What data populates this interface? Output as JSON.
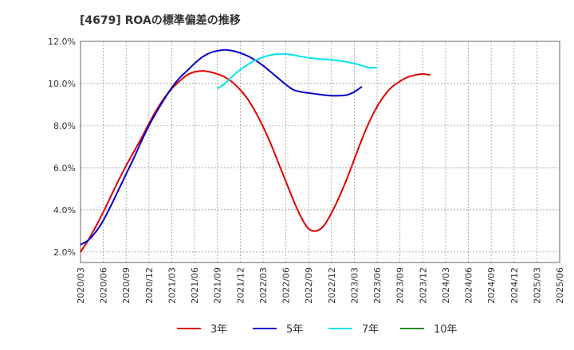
{
  "chart_data": {
    "type": "line",
    "title": "[4679]  ROAの標準偏差の推移",
    "xlabel": "",
    "ylabel": "",
    "ylim": [
      1.5,
      12.0
    ],
    "yticks": [
      2.0,
      4.0,
      6.0,
      8.0,
      10.0,
      12.0
    ],
    "ytick_labels": [
      "2.0%",
      "4.0%",
      "6.0%",
      "8.0%",
      "10.0%",
      "12.0%"
    ],
    "x_tick_labels": [
      "2020/03",
      "2020/06",
      "2020/09",
      "2020/12",
      "2021/03",
      "2021/06",
      "2021/09",
      "2021/12",
      "2022/03",
      "2022/06",
      "2022/09",
      "2022/12",
      "2023/03",
      "2023/06",
      "2023/09",
      "2023/12",
      "2024/03",
      "2024/06",
      "2024/09",
      "2024/12",
      "2025/03",
      "2025/06"
    ],
    "grid": true,
    "legend_position": "bottom",
    "series": [
      {
        "name": "3年",
        "color": "#e00000",
        "values": [
          [
            0,
            2.0
          ],
          [
            1,
            2.55
          ],
          [
            2,
            3.2
          ],
          [
            3,
            3.9
          ],
          [
            4,
            4.65
          ],
          [
            5,
            5.4
          ],
          [
            6,
            6.1
          ],
          [
            7,
            6.75
          ],
          [
            8,
            7.4
          ],
          [
            9,
            8.1
          ],
          [
            10,
            8.75
          ],
          [
            11,
            9.3
          ],
          [
            12,
            9.75
          ],
          [
            13,
            10.1
          ],
          [
            14,
            10.4
          ],
          [
            15,
            10.55
          ],
          [
            16,
            10.6
          ],
          [
            17,
            10.55
          ],
          [
            18,
            10.45
          ],
          [
            19,
            10.3
          ],
          [
            20,
            10.05
          ],
          [
            21,
            9.7
          ],
          [
            22,
            9.25
          ],
          [
            23,
            8.65
          ],
          [
            24,
            7.95
          ],
          [
            25,
            7.15
          ],
          [
            26,
            6.25
          ],
          [
            27,
            5.35
          ],
          [
            28,
            4.45
          ],
          [
            29,
            3.65
          ],
          [
            30,
            3.1
          ],
          [
            31,
            3.0
          ],
          [
            32,
            3.25
          ],
          [
            33,
            3.85
          ],
          [
            34,
            4.6
          ],
          [
            35,
            5.45
          ],
          [
            36,
            6.4
          ],
          [
            37,
            7.35
          ],
          [
            38,
            8.2
          ],
          [
            39,
            8.9
          ],
          [
            40,
            9.45
          ],
          [
            41,
            9.85
          ],
          [
            42,
            10.1
          ],
          [
            43,
            10.3
          ],
          [
            44,
            10.4
          ],
          [
            45,
            10.45
          ],
          [
            46,
            10.4
          ]
        ]
      },
      {
        "name": "5年",
        "color": "#0000cc",
        "values": [
          [
            0,
            2.35
          ],
          [
            1,
            2.55
          ],
          [
            2,
            2.95
          ],
          [
            3,
            3.5
          ],
          [
            4,
            4.2
          ],
          [
            5,
            4.95
          ],
          [
            6,
            5.7
          ],
          [
            7,
            6.45
          ],
          [
            8,
            7.25
          ],
          [
            9,
            8.0
          ],
          [
            10,
            8.65
          ],
          [
            11,
            9.25
          ],
          [
            12,
            9.8
          ],
          [
            13,
            10.25
          ],
          [
            14,
            10.6
          ],
          [
            15,
            10.95
          ],
          [
            16,
            11.25
          ],
          [
            17,
            11.45
          ],
          [
            18,
            11.55
          ],
          [
            19,
            11.6
          ],
          [
            20,
            11.55
          ],
          [
            21,
            11.45
          ],
          [
            22,
            11.3
          ],
          [
            23,
            11.1
          ],
          [
            24,
            10.85
          ],
          [
            25,
            10.55
          ],
          [
            26,
            10.25
          ],
          [
            27,
            9.95
          ],
          [
            28,
            9.7
          ],
          [
            29,
            9.6
          ],
          [
            30,
            9.55
          ],
          [
            31,
            9.5
          ],
          [
            32,
            9.45
          ],
          [
            33,
            9.42
          ],
          [
            34,
            9.42
          ],
          [
            35,
            9.45
          ],
          [
            36,
            9.6
          ],
          [
            37,
            9.85
          ]
        ]
      },
      {
        "name": "7年",
        "color": "#00e5ee",
        "values": [
          [
            18,
            9.75
          ],
          [
            19,
            10.0
          ],
          [
            20,
            10.35
          ],
          [
            21,
            10.65
          ],
          [
            22,
            10.9
          ],
          [
            23,
            11.1
          ],
          [
            24,
            11.25
          ],
          [
            25,
            11.35
          ],
          [
            26,
            11.4
          ],
          [
            27,
            11.4
          ],
          [
            28,
            11.35
          ],
          [
            29,
            11.28
          ],
          [
            30,
            11.22
          ],
          [
            31,
            11.18
          ],
          [
            32,
            11.15
          ],
          [
            33,
            11.12
          ],
          [
            34,
            11.08
          ],
          [
            35,
            11.02
          ],
          [
            36,
            10.95
          ],
          [
            37,
            10.85
          ],
          [
            38,
            10.75
          ],
          [
            39,
            10.75
          ]
        ]
      },
      {
        "name": "10年",
        "color": "#228b22",
        "values": []
      }
    ]
  }
}
